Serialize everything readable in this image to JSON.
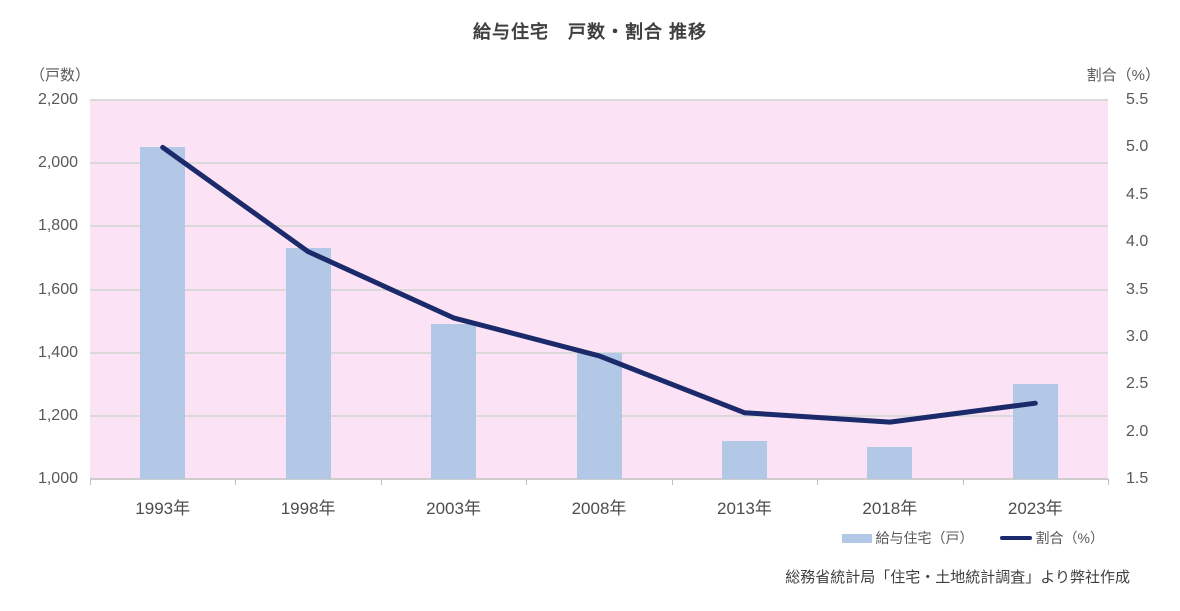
{
  "title": "給与住宅　戸数・割合 推移",
  "left_axis_unit": "（戸数）",
  "right_axis_unit": "割合（%）",
  "legend": {
    "bar_label": "給与住宅（戸）",
    "line_label": "割合（%）"
  },
  "source_note": "総務省統計局「住宅・土地統計調査」より弊社作成",
  "colors": {
    "bar": "#b3c7e6",
    "line": "#1b2a6a",
    "plot_bg": "#fbe3f5",
    "grid": "#d9d9d9",
    "axis_line": "#cfcdcd",
    "tick_text": "#595959",
    "title_text": "#3f3f3f"
  },
  "chart_data": {
    "type": "bar",
    "subtype": "combo-bar-line-dual-axis",
    "categories": [
      "1993年",
      "1998年",
      "2003年",
      "2008年",
      "2013年",
      "2018年",
      "2023年"
    ],
    "series": [
      {
        "name": "給与住宅（戸）",
        "type": "bar",
        "axis": "left",
        "values": [
          2050,
          1730,
          1490,
          1400,
          1120,
          1100,
          1300
        ]
      },
      {
        "name": "割合（%）",
        "type": "line",
        "axis": "right",
        "values": [
          5.0,
          3.9,
          3.2,
          2.8,
          2.2,
          2.1,
          2.3
        ]
      }
    ],
    "title": "給与住宅　戸数・割合 推移",
    "xlabel": "",
    "ylabel_left": "（戸数）",
    "ylabel_right": "割合（%）",
    "left_axis": {
      "min": 1000,
      "max": 2200,
      "step": 200,
      "tick_labels": [
        "2,200",
        "2,000",
        "1,800",
        "1,600",
        "1,400",
        "1,200",
        "1,000"
      ]
    },
    "right_axis": {
      "min": 1.5,
      "max": 5.5,
      "step": 0.5,
      "tick_labels": [
        "5.5",
        "5.0",
        "4.5",
        "4.0",
        "3.5",
        "3.0",
        "2.5",
        "2.0",
        "1.5"
      ]
    },
    "grid": true,
    "legend_position": "bottom-right"
  }
}
